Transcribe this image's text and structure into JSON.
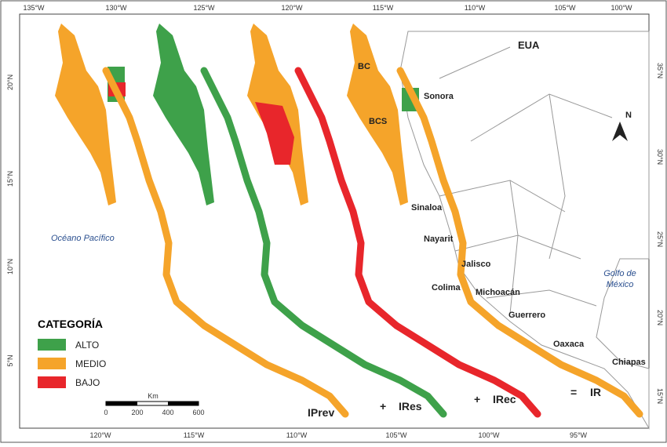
{
  "axes": {
    "top": [
      "135°W",
      "130°W",
      "125°W",
      "120°W",
      "115°W",
      "110°W",
      "105°W",
      "100°W"
    ],
    "bottom": [
      "120°W",
      "115°W",
      "110°W",
      "105°W",
      "100°W",
      "95°W"
    ],
    "left": [
      "20°N",
      "15°N",
      "10°N",
      "5°N"
    ],
    "right": [
      "35°N",
      "30°N",
      "25°N",
      "20°N",
      "15°N"
    ]
  },
  "places": {
    "usa": "EUA",
    "bc": "BC",
    "bcs": "BCS",
    "sonora": "Sonora",
    "sinaloa": "Sinaloa",
    "nayarit": "Nayarit",
    "jalisco": "Jalisco",
    "colima": "Colima",
    "michoacan": "Michoacán",
    "guerrero": "Guerrero",
    "oaxaca": "Oaxaca",
    "chiapas": "Chiapas",
    "pacific": "Océano Pacífico",
    "gulf": [
      "Golfo de",
      "México"
    ]
  },
  "north": "N",
  "legend": {
    "title": "CATEGORÍA",
    "items": [
      "ALTO",
      "MEDIO",
      "BAJO"
    ]
  },
  "scale": {
    "unit": "Km",
    "labels": [
      "0",
      "200",
      "400",
      "600"
    ]
  },
  "formula": [
    "IPrev",
    "+",
    "IRes",
    "+",
    "IRec",
    "=",
    "IR"
  ]
}
